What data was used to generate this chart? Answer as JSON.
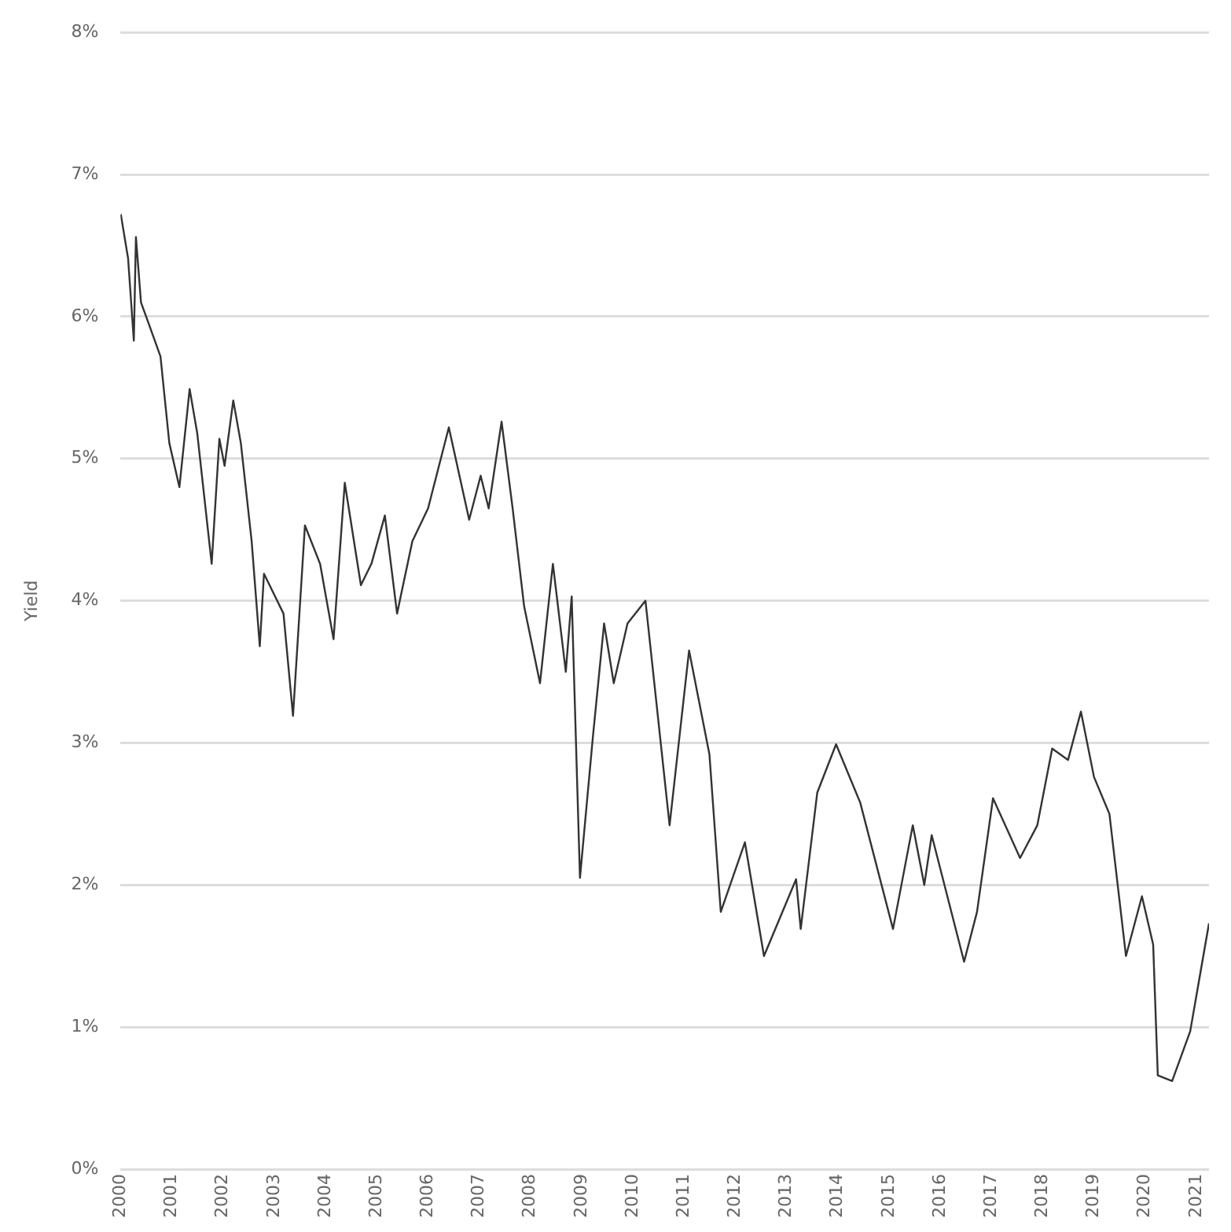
{
  "chart_data": {
    "type": "line",
    "ylabel": "Yield",
    "x": [
      "2000-01-03",
      "2000-02-24",
      "2000-04-05",
      "2000-04-20",
      "2000-05-26",
      "2000-07-20",
      "2000-10-12",
      "2000-12-14",
      "2001-02-24",
      "2001-05-08",
      "2001-07-01",
      "2001-10-12",
      "2001-12-06",
      "2002-01-12",
      "2002-03-15",
      "2002-05-08",
      "2002-07-24",
      "2002-09-20",
      "2002-10-20",
      "2003-03-08",
      "2003-05-15",
      "2003-08-08",
      "2003-11-24",
      "2004-02-28",
      "2004-05-18",
      "2004-09-10",
      "2004-11-24",
      "2005-02-28",
      "2005-05-26",
      "2005-09-12",
      "2006-01-02",
      "2006-05-30",
      "2006-10-22",
      "2007-01-12",
      "2007-03-10",
      "2007-06-10",
      "2007-08-28",
      "2007-11-18",
      "2008-01-22",
      "2008-03-10",
      "2008-06-10",
      "2008-09-10",
      "2008-10-22",
      "2008-12-20",
      "2009-03-22",
      "2009-06-10",
      "2009-08-18",
      "2009-11-24",
      "2010-04-01",
      "2010-09-20",
      "2011-02-06",
      "2011-07-01",
      "2011-09-20",
      "2012-03-10",
      "2012-07-24",
      "2013-03-10",
      "2013-04-12",
      "2013-08-08",
      "2013-12-20",
      "2014-06-10",
      "2015-01-30",
      "2015-06-20",
      "2015-09-10",
      "2015-11-02",
      "2016-06-20",
      "2016-09-20",
      "2017-01-12",
      "2017-07-24",
      "2017-11-24",
      "2018-03-10",
      "2018-07-01",
      "2018-10-01",
      "2019-01-02",
      "2019-04-22",
      "2019-08-18",
      "2019-12-10",
      "2020-02-28",
      "2020-04-01",
      "2020-07-12",
      "2020-11-18",
      "2021-04-01"
    ],
    "series": [
      {
        "color": "#333333",
        "values": [
          6.72,
          6.41,
          5.83,
          6.56,
          6.1,
          5.95,
          5.72,
          5.11,
          4.8,
          5.49,
          5.18,
          4.26,
          5.14,
          4.95,
          5.41,
          5.11,
          4.42,
          3.68,
          4.19,
          3.91,
          3.19,
          4.53,
          4.26,
          3.73,
          4.83,
          4.11,
          4.26,
          4.6,
          3.91,
          4.42,
          4.65,
          5.22,
          4.57,
          4.88,
          4.65,
          5.26,
          4.65,
          3.96,
          3.65,
          3.42,
          4.26,
          3.5,
          4.03,
          2.05,
          3.04,
          3.84,
          3.42,
          3.84,
          4.0,
          2.42,
          3.65,
          2.92,
          1.81,
          2.3,
          1.5,
          2.04,
          1.69,
          2.65,
          2.99,
          2.58,
          1.69,
          2.42,
          2.0,
          2.35,
          1.46,
          1.81,
          2.61,
          2.19,
          2.42,
          2.96,
          2.88,
          3.22,
          2.76,
          2.5,
          1.5,
          1.92,
          1.58,
          0.66,
          0.62,
          0.97,
          1.73
        ]
      }
    ],
    "xlim": [
      "2000-01-01",
      "2021-04-01"
    ],
    "xticks": [
      "2000",
      "2001",
      "2002",
      "2003",
      "2004",
      "2005",
      "2006",
      "2007",
      "2008",
      "2009",
      "2010",
      "2011",
      "2012",
      "2013",
      "2014",
      "2015",
      "2016",
      "2017",
      "2018",
      "2019",
      "2020",
      "2021"
    ],
    "ylim": [
      0,
      8
    ],
    "yticks": [
      {
        "value": 0,
        "label": "0%"
      },
      {
        "value": 1,
        "label": "1%"
      },
      {
        "value": 2,
        "label": "2%"
      },
      {
        "value": 3,
        "label": "3%"
      },
      {
        "value": 4,
        "label": "4%"
      },
      {
        "value": 5,
        "label": "5%"
      },
      {
        "value": 6,
        "label": "6%"
      },
      {
        "value": 7,
        "label": "7%"
      },
      {
        "value": 8,
        "label": "8%"
      }
    ],
    "grid": "y",
    "legend": false,
    "marker": "none",
    "line_style": "solid"
  }
}
